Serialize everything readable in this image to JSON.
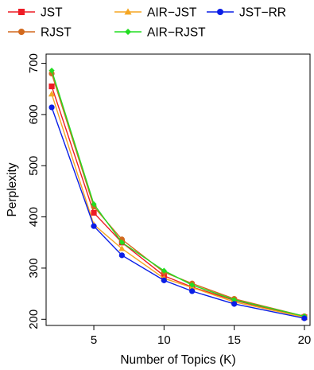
{
  "chart_data": {
    "type": "line",
    "xlabel": "Number of Topics (K)",
    "ylabel": "Perplexity",
    "x": [
      2,
      5,
      7,
      10,
      12,
      15,
      20
    ],
    "xlim": [
      1.6,
      20.4
    ],
    "ylim": [
      188,
      718
    ],
    "xticks": [
      5,
      10,
      15,
      20
    ],
    "xtick_labels": [
      "5",
      "10",
      "15",
      "20"
    ],
    "yticks": [
      200,
      300,
      400,
      500,
      600,
      700
    ],
    "ytick_labels": [
      "200",
      "300",
      "400",
      "500",
      "600",
      "700"
    ],
    "grid": false,
    "legend": "top",
    "series": [
      {
        "name": "JST",
        "color": "#ee1c25",
        "marker": "square",
        "values": [
          655,
          408,
          350,
          285,
          263,
          237,
          204
        ]
      },
      {
        "name": "RJST",
        "color": "#d2691e",
        "marker": "circle",
        "values": [
          680,
          420,
          356,
          292,
          270,
          240,
          206
        ]
      },
      {
        "name": "AIR−JST",
        "color": "#f5a623",
        "marker": "triangle",
        "values": [
          640,
          385,
          338,
          280,
          262,
          234,
          204
        ]
      },
      {
        "name": "AIR−RJST",
        "color": "#22dd22",
        "marker": "diamond",
        "values": [
          686,
          425,
          350,
          295,
          267,
          238,
          206
        ]
      },
      {
        "name": "JST−RR",
        "color": "#0a1ee6",
        "marker": "circle",
        "values": [
          614,
          382,
          325,
          276,
          255,
          230,
          202
        ]
      }
    ]
  }
}
